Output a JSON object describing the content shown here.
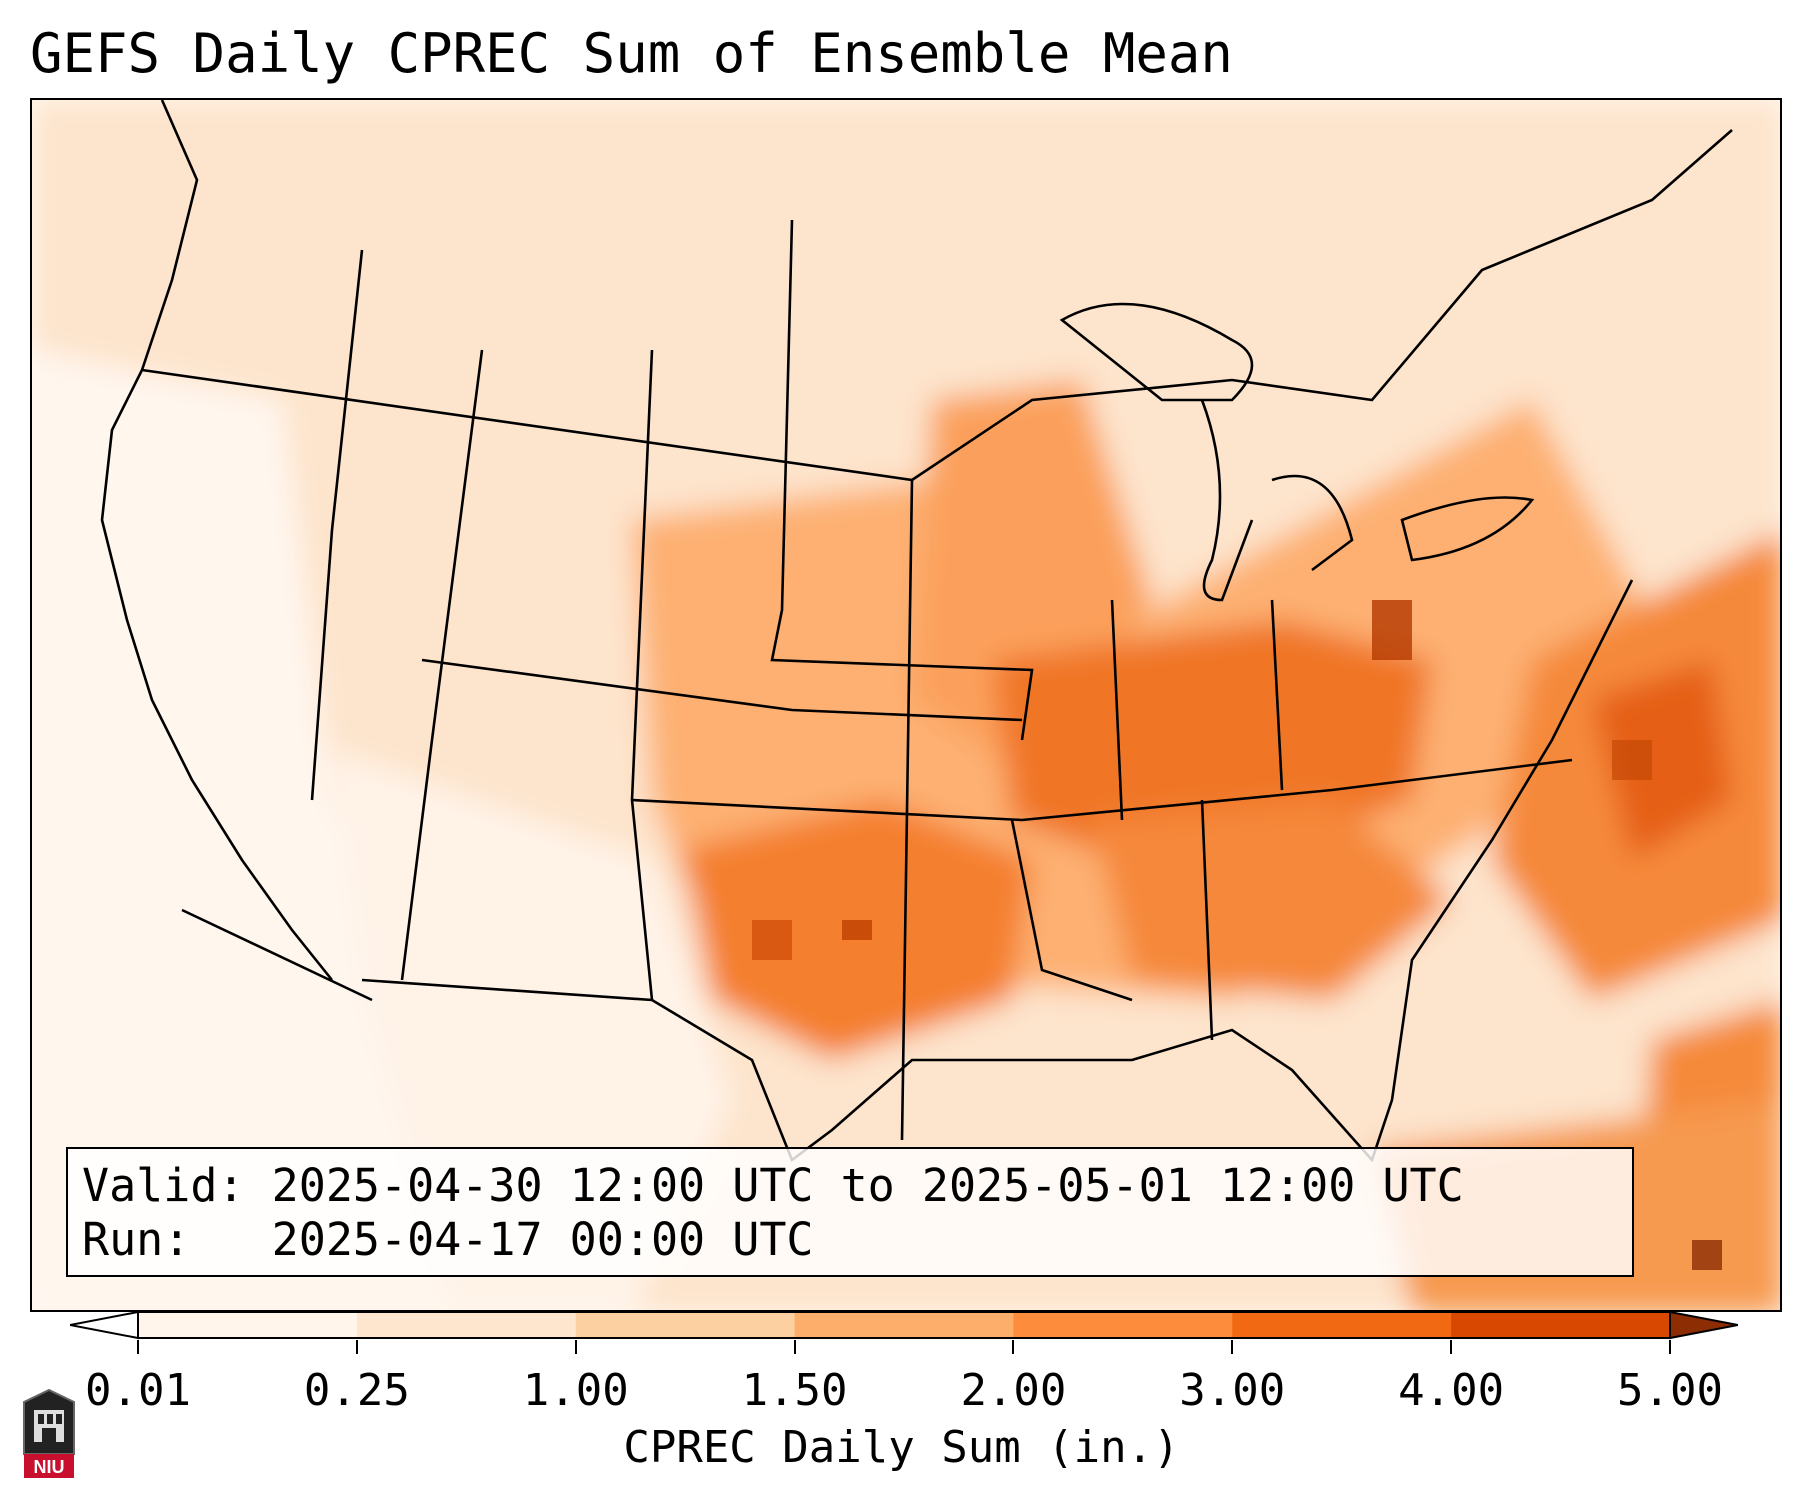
{
  "title": "GEFS Daily CPREC Sum of Ensemble Mean",
  "info": {
    "valid_label": "Valid:",
    "valid_value": "2025-04-30 12:00 UTC to 2025-05-01 12:00 UTC",
    "run_label": "Run:",
    "run_value": "2025-04-17 00:00 UTC"
  },
  "colorbar": {
    "label": "CPREC Daily Sum (in.)",
    "ticks": [
      "0.01",
      "0.25",
      "1.00",
      "1.50",
      "2.00",
      "3.00",
      "4.00",
      "5.00"
    ],
    "colors": [
      "#fff5eb",
      "#fee6ce",
      "#fdd0a2",
      "#fdae6b",
      "#fd8d3c",
      "#f16913",
      "#d94801",
      "#8c2d04"
    ],
    "extend": "both"
  },
  "logo": {
    "text": "NIU",
    "colors": {
      "red": "#c8102e",
      "dark": "#222222"
    }
  },
  "map": {
    "region": "Contiguous United States",
    "colors": {
      "background": "#fff8f0",
      "light": "#fde8d2",
      "pale": "#fdd5b0",
      "mid": "#fdae6b",
      "strong": "#f58a3a",
      "heavy": "#e35e12",
      "max": "#b84006",
      "border": "#000000"
    }
  }
}
